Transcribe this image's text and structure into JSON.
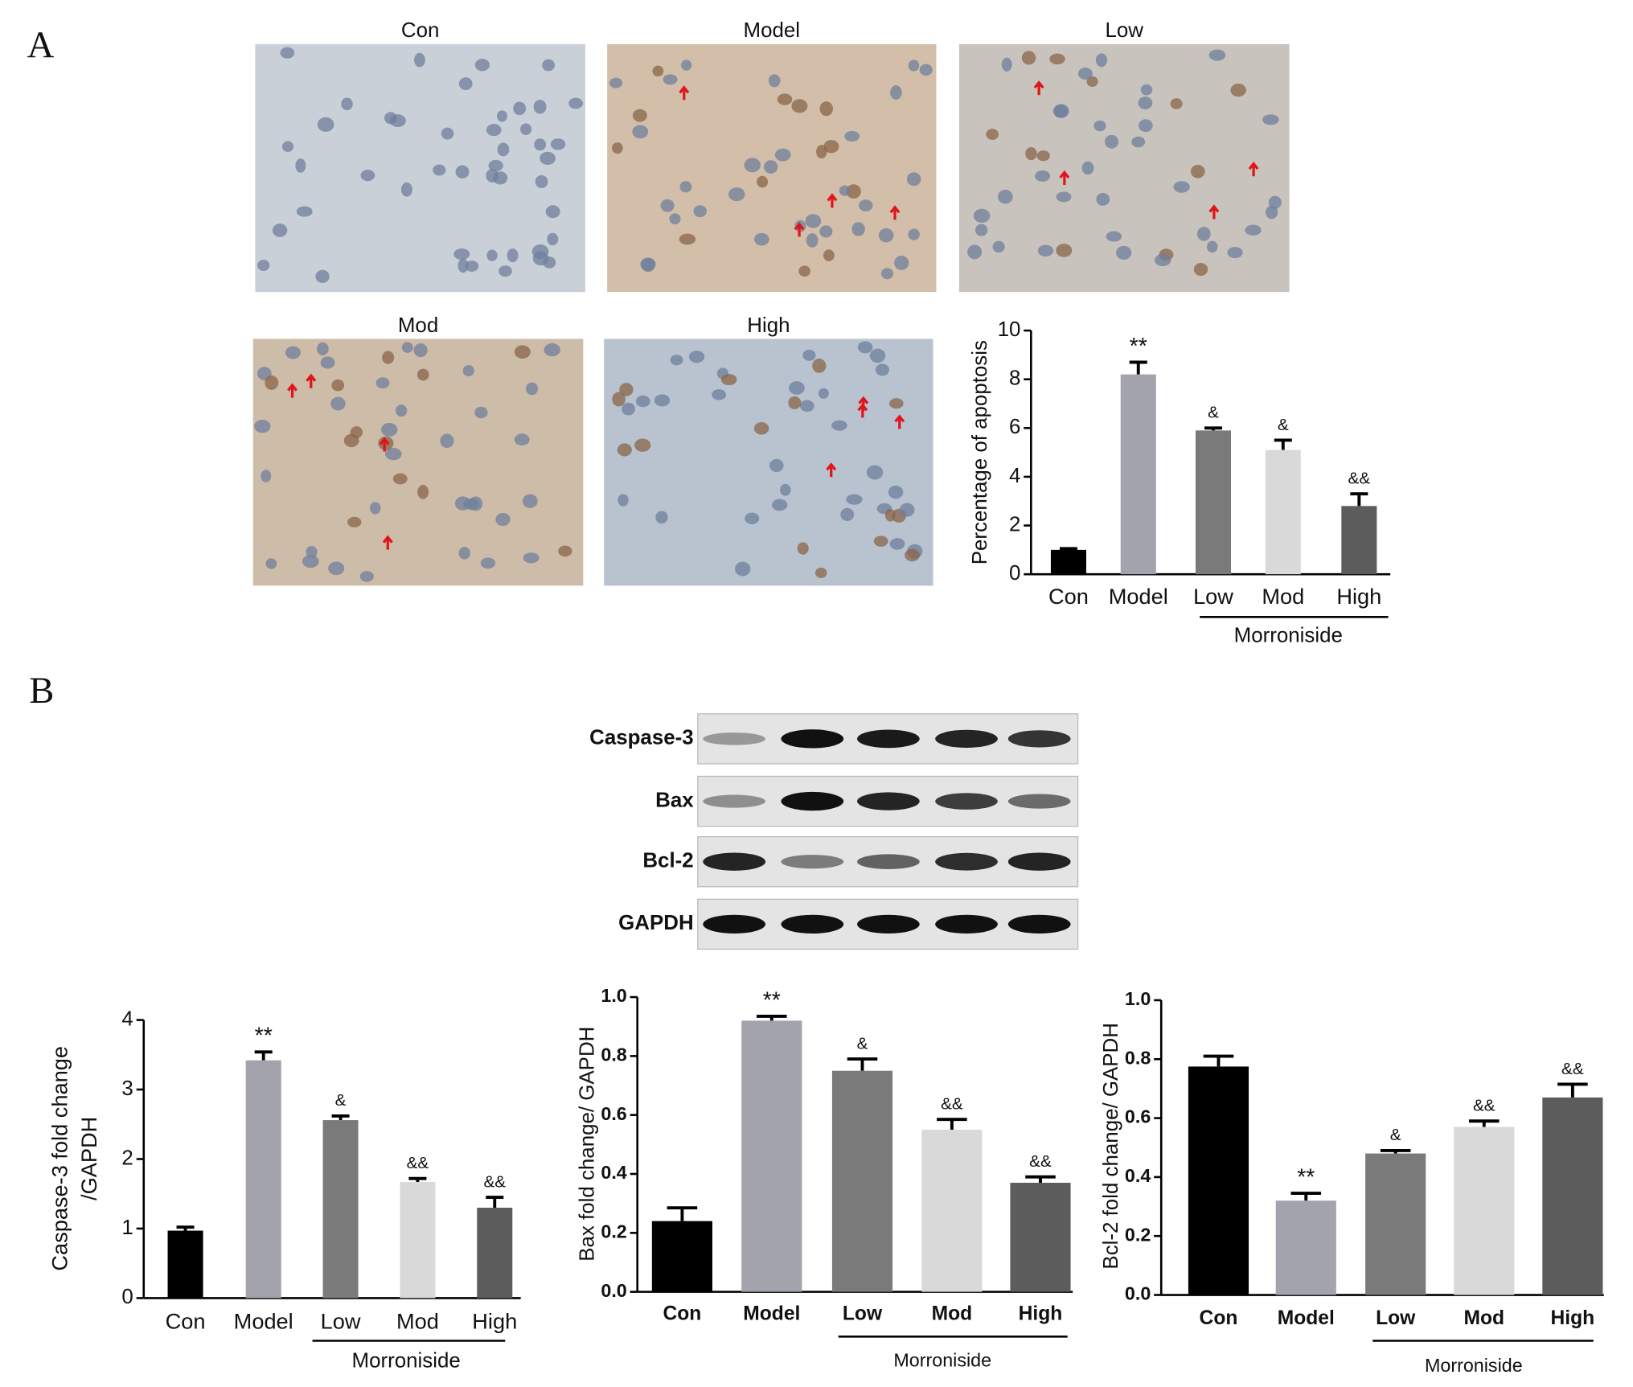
{
  "panels": [
    "A",
    "B"
  ],
  "micrographs": [
    "Con",
    "Model",
    "Low",
    "Mod",
    "High"
  ],
  "blot": {
    "labels": [
      "Caspase-3",
      "Bax",
      "Bcl-2",
      "GAPDH"
    ]
  },
  "chart_data": [
    {
      "type": "bar",
      "y_label": "Percentage of apoptosis",
      "categories": [
        "Con",
        "Model",
        "Low",
        "Mod",
        "High"
      ],
      "values": [
        1,
        8.2,
        5.9,
        5.1,
        2.8
      ],
      "errors": [
        0.05,
        0.5,
        0.1,
        0.4,
        0.5
      ],
      "annotations": [
        null,
        "**",
        "&",
        "&",
        "&&"
      ],
      "colors": [
        "#000000",
        "#a3a3ad",
        "#7a7a7a",
        "#d9d9d9",
        "#5c5c5c"
      ],
      "group_label": "Morroniside",
      "ylim": [
        0,
        10
      ],
      "yticks": [
        0,
        2,
        4,
        6,
        8,
        10
      ]
    },
    {
      "type": "bar",
      "y_label": [
        "Caspase-3 fold change",
        "/GAPDH"
      ],
      "categories": [
        "Con",
        "Model",
        "Low",
        "Mod",
        "High"
      ],
      "values": [
        0.97,
        3.42,
        2.56,
        1.67,
        1.3
      ],
      "errors": [
        0.05,
        0.12,
        0.06,
        0.05,
        0.15
      ],
      "annotations": [
        null,
        "**",
        "&",
        "&&",
        "&&"
      ],
      "colors": [
        "#000000",
        "#a3a3ad",
        "#7a7a7a",
        "#d9d9d9",
        "#5c5c5c"
      ],
      "group_label": "Morroniside",
      "ylim": [
        0,
        4
      ],
      "yticks": [
        0,
        1,
        2,
        3,
        4
      ]
    },
    {
      "type": "bar",
      "y_label": "Bax fold change/ GAPDH",
      "categories": [
        "Con",
        "Model",
        "Low",
        "Mod",
        "High"
      ],
      "values": [
        0.24,
        0.92,
        0.75,
        0.55,
        0.37
      ],
      "errors": [
        0.045,
        0.015,
        0.04,
        0.035,
        0.02
      ],
      "annotations": [
        null,
        "**",
        "&",
        "&&",
        "&&"
      ],
      "colors": [
        "#000000",
        "#a3a3ad",
        "#7a7a7a",
        "#d9d9d9",
        "#5c5c5c"
      ],
      "group_label": "Morroniside",
      "ylim": [
        0,
        1
      ],
      "yticks": [
        {
          "value": 0,
          "label": "0.0"
        },
        {
          "value": 0.2,
          "label": "0.2"
        },
        {
          "value": 0.4,
          "label": "0.4"
        },
        {
          "value": 0.6,
          "label": "0.6"
        },
        {
          "value": 0.8,
          "label": "0.8"
        },
        {
          "value": 1,
          "label": "1.0"
        }
      ]
    },
    {
      "type": "bar",
      "y_label": "Bcl-2 fold change/ GAPDH",
      "categories": [
        "Con",
        "Model",
        "Low",
        "Mod",
        "High"
      ],
      "values": [
        0.775,
        0.32,
        0.48,
        0.57,
        0.67
      ],
      "errors": [
        0.035,
        0.025,
        0.01,
        0.02,
        0.045
      ],
      "annotations": [
        null,
        "**",
        "&",
        "&&",
        "&&"
      ],
      "colors": [
        "#000000",
        "#a3a3ad",
        "#7a7a7a",
        "#d9d9d9",
        "#5c5c5c"
      ],
      "group_label": "Morroniside",
      "ylim": [
        0,
        1
      ],
      "yticks": [
        {
          "value": 0,
          "label": "0.0"
        },
        {
          "value": 0.2,
          "label": "0.2"
        },
        {
          "value": 0.4,
          "label": "0.4"
        },
        {
          "value": 0.6,
          "label": "0.6"
        },
        {
          "value": 0.8,
          "label": "0.8"
        },
        {
          "value": 1,
          "label": "1.0"
        }
      ]
    }
  ]
}
